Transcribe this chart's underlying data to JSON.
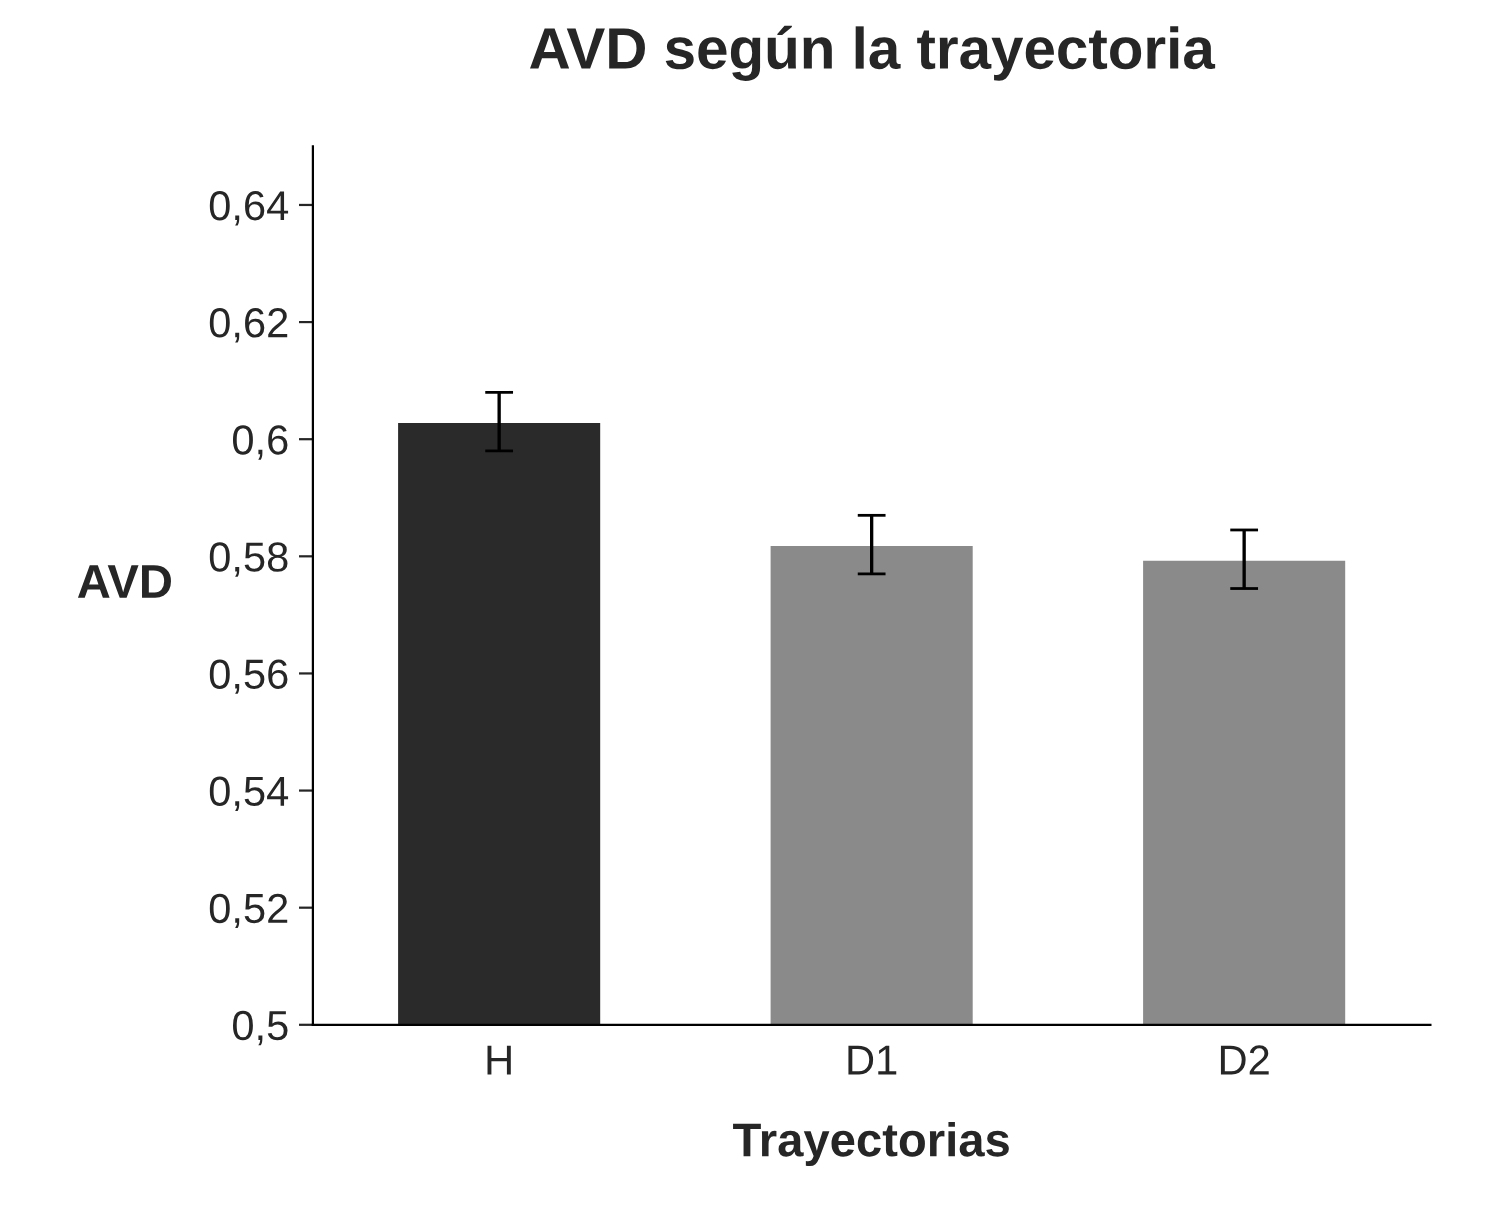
{
  "chart_data": {
    "type": "bar",
    "title": "AVD según la trayectoria",
    "xlabel": "Trayectorias",
    "ylabel": "AVD",
    "categories": [
      "H",
      "D1",
      "D2"
    ],
    "values": [
      0.603,
      0.582,
      0.5795
    ],
    "errors": [
      0.005,
      0.005,
      0.005
    ],
    "colors": [
      "#2a2a2a",
      "#8a8a8a",
      "#8a8a8a"
    ],
    "ylim": [
      0.5,
      0.65
    ],
    "yticks": [
      {
        "value": 0.5,
        "label": "0,5"
      },
      {
        "value": 0.52,
        "label": "0,52"
      },
      {
        "value": 0.54,
        "label": "0,54"
      },
      {
        "value": 0.56,
        "label": "0,56"
      },
      {
        "value": 0.58,
        "label": "0,58"
      },
      {
        "value": 0.6,
        "label": "0,6"
      },
      {
        "value": 0.62,
        "label": "0,62"
      },
      {
        "value": 0.64,
        "label": "0,64"
      }
    ],
    "grid": false,
    "legend": false
  }
}
